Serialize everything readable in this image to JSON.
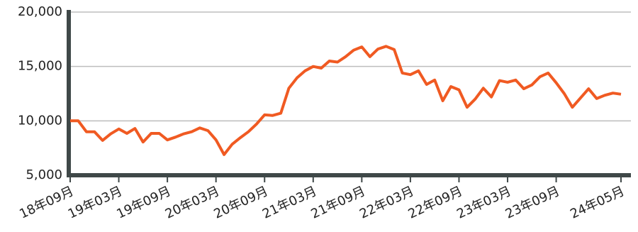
{
  "chart_data": {
    "type": "line",
    "color": "#f05a22",
    "grid": true,
    "categories": [
      "18年09月",
      null,
      null,
      null,
      null,
      null,
      "19年03月",
      null,
      null,
      null,
      null,
      null,
      "19年09月",
      null,
      null,
      null,
      null,
      null,
      "20年03月",
      null,
      null,
      null,
      null,
      null,
      "20年09月",
      null,
      null,
      null,
      null,
      null,
      "21年03月",
      null,
      null,
      null,
      null,
      null,
      "21年09月",
      null,
      null,
      null,
      null,
      null,
      "22年03月",
      null,
      null,
      null,
      null,
      null,
      "22年09月",
      null,
      null,
      null,
      null,
      null,
      "23年03月",
      null,
      null,
      null,
      null,
      null,
      "23年09月",
      null,
      null,
      null,
      null,
      null,
      null,
      null,
      "24年05月"
    ],
    "values": [
      10000,
      10000,
      9000,
      9000,
      8200,
      8800,
      9250,
      8850,
      9300,
      8050,
      8850,
      8850,
      8250,
      8500,
      8800,
      9000,
      9350,
      9100,
      8250,
      6900,
      7850,
      8450,
      9000,
      9700,
      10550,
      10500,
      10700,
      13000,
      13950,
      14600,
      15000,
      14850,
      15500,
      15400,
      15900,
      16500,
      16800,
      15900,
      16600,
      16850,
      16550,
      14400,
      14250,
      14600,
      13350,
      13750,
      11850,
      13150,
      12850,
      11250,
      12000,
      13000,
      12200,
      13700,
      13550,
      13750,
      12950,
      13300,
      14050,
      14400,
      13500,
      12500,
      11250,
      12100,
      12950,
      12050,
      12350,
      12550,
      12450
    ],
    "ylim": [
      5000,
      20000
    ],
    "yticks": [
      {
        "value": 5000,
        "label": "5,000"
      },
      {
        "value": 10000,
        "label": "10,000"
      },
      {
        "value": 15000,
        "label": "15,000"
      },
      {
        "value": 20000,
        "label": "20,000"
      }
    ]
  }
}
